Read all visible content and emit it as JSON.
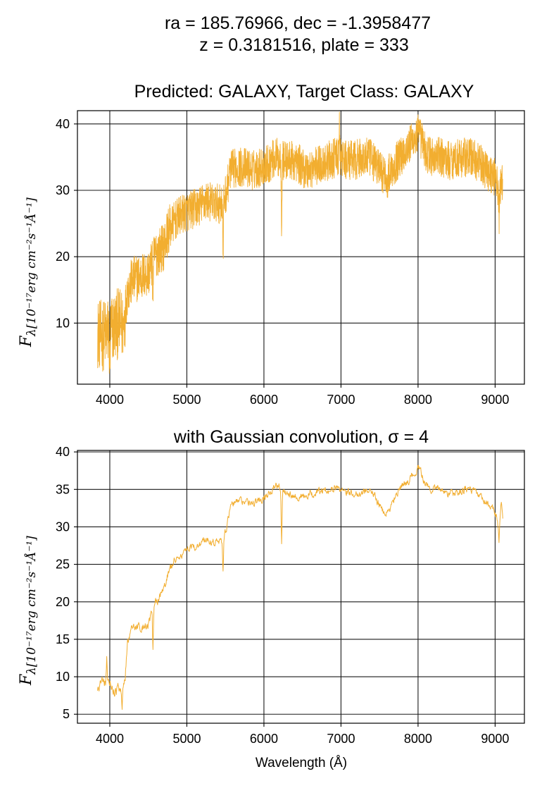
{
  "header": {
    "line1": "ra = 185.76966, dec = -1.3958477",
    "line2": "z = 0.3181516, plate = 333"
  },
  "colors": {
    "series": "#f2ae30",
    "grid": "#1a1a1a",
    "axes": "#000000"
  },
  "chart_data": [
    {
      "type": "line",
      "title": "Predicted: GALAXY, Target Class: GALAXY",
      "xlabel": "",
      "ylabel_main": "F",
      "ylabel_sub": "λ[10⁻¹⁷erg cm⁻²s⁻¹Å⁻¹]",
      "xlim": [
        3580,
        9380
      ],
      "ylim": [
        0.8,
        42
      ],
      "xticks": [
        4000,
        5000,
        6000,
        7000,
        8000,
        9000
      ],
      "yticks": [
        10,
        20,
        30,
        40
      ],
      "grid": true,
      "series_color": "#f2ae30",
      "anchors": [
        [
          3840,
          8.5
        ],
        [
          3900,
          8.0
        ],
        [
          3960,
          8.5
        ],
        [
          4000,
          8.8
        ],
        [
          4060,
          9.5
        ],
        [
          4120,
          10.0
        ],
        [
          4180,
          9.5
        ],
        [
          4200,
          12.0
        ],
        [
          4230,
          15.0
        ],
        [
          4300,
          16.5
        ],
        [
          4400,
          17.0
        ],
        [
          4500,
          17.5
        ],
        [
          4560,
          19.5
        ],
        [
          4600,
          20.5
        ],
        [
          4700,
          21.5
        ],
        [
          4760,
          24.0
        ],
        [
          4850,
          25.5
        ],
        [
          4950,
          26.5
        ],
        [
          5050,
          27.0
        ],
        [
          5150,
          27.5
        ],
        [
          5250,
          28.5
        ],
        [
          5350,
          28.0
        ],
        [
          5450,
          28.0
        ],
        [
          5520,
          30.0
        ],
        [
          5560,
          33.0
        ],
        [
          5650,
          33.5
        ],
        [
          5750,
          33.5
        ],
        [
          5850,
          33.0
        ],
        [
          5950,
          33.5
        ],
        [
          6050,
          34.0
        ],
        [
          6150,
          35.0
        ],
        [
          6250,
          34.5
        ],
        [
          6350,
          34.5
        ],
        [
          6450,
          34.0
        ],
        [
          6550,
          33.0
        ],
        [
          6650,
          33.5
        ],
        [
          6750,
          34.0
        ],
        [
          6850,
          34.5
        ],
        [
          6950,
          35.0
        ],
        [
          7050,
          34.5
        ],
        [
          7150,
          34.5
        ],
        [
          7250,
          34.8
        ],
        [
          7350,
          35.0
        ],
        [
          7450,
          34.0
        ],
        [
          7550,
          32.5
        ],
        [
          7620,
          32.5
        ],
        [
          7700,
          34.0
        ],
        [
          7800,
          35.5
        ],
        [
          7900,
          37.0
        ],
        [
          8000,
          38.5
        ],
        [
          8050,
          37.5
        ],
        [
          8100,
          35.5
        ],
        [
          8200,
          35.0
        ],
        [
          8300,
          35.0
        ],
        [
          8400,
          34.5
        ],
        [
          8500,
          34.8
        ],
        [
          8600,
          35.0
        ],
        [
          8700,
          35.0
        ],
        [
          8800,
          34.0
        ],
        [
          8900,
          33.0
        ],
        [
          9000,
          32.0
        ],
        [
          9050,
          30.0
        ],
        [
          9100,
          31.0
        ]
      ],
      "features": [
        [
          5470,
          -9.0
        ],
        [
          6230,
          -9.0
        ],
        [
          7600,
          -3.0
        ],
        [
          9050,
          -4.5
        ],
        [
          4560,
          -5.0
        ],
        [
          6980,
          4.5
        ],
        [
          4000,
          -6.0
        ]
      ],
      "noise_amplitude": 3.0
    },
    {
      "type": "line",
      "title": "with Gaussian convolution, σ = 4",
      "xlabel": "Wavelength (Å)",
      "ylabel_main": "F",
      "ylabel_sub": "λ[10⁻¹⁷erg cm⁻²s⁻¹Å⁻¹]",
      "xlim": [
        3580,
        9380
      ],
      "ylim": [
        3.8,
        40.2
      ],
      "xticks": [
        4000,
        5000,
        6000,
        7000,
        8000,
        9000
      ],
      "yticks": [
        5,
        10,
        15,
        20,
        25,
        30,
        35,
        40
      ],
      "grid": true,
      "series_color": "#f2ae30",
      "anchors": [
        [
          3840,
          8.0
        ],
        [
          3900,
          9.5
        ],
        [
          3960,
          9.0
        ],
        [
          4000,
          9.5
        ],
        [
          4060,
          8.0
        ],
        [
          4120,
          8.5
        ],
        [
          4160,
          8.0
        ],
        [
          4200,
          10.0
        ],
        [
          4230,
          15.0
        ],
        [
          4300,
          16.5
        ],
        [
          4400,
          16.8
        ],
        [
          4500,
          17.0
        ],
        [
          4560,
          19.0
        ],
        [
          4600,
          20.0
        ],
        [
          4700,
          21.5
        ],
        [
          4760,
          24.0
        ],
        [
          4850,
          25.5
        ],
        [
          4950,
          26.5
        ],
        [
          5050,
          27.0
        ],
        [
          5150,
          27.5
        ],
        [
          5250,
          28.5
        ],
        [
          5350,
          28.0
        ],
        [
          5450,
          28.0
        ],
        [
          5520,
          30.0
        ],
        [
          5560,
          32.5
        ],
        [
          5650,
          33.5
        ],
        [
          5750,
          33.5
        ],
        [
          5850,
          33.0
        ],
        [
          5950,
          33.5
        ],
        [
          6050,
          34.5
        ],
        [
          6150,
          35.5
        ],
        [
          6250,
          35.0
        ],
        [
          6350,
          34.5
        ],
        [
          6450,
          34.0
        ],
        [
          6550,
          34.0
        ],
        [
          6650,
          34.5
        ],
        [
          6750,
          34.8
        ],
        [
          6850,
          35.0
        ],
        [
          6950,
          35.2
        ],
        [
          7050,
          35.0
        ],
        [
          7150,
          34.5
        ],
        [
          7250,
          34.5
        ],
        [
          7350,
          35.0
        ],
        [
          7450,
          34.0
        ],
        [
          7550,
          31.8
        ],
        [
          7620,
          32.0
        ],
        [
          7700,
          34.0
        ],
        [
          7800,
          35.5
        ],
        [
          7900,
          36.5
        ],
        [
          8000,
          38.0
        ],
        [
          8050,
          37.0
        ],
        [
          8100,
          35.5
        ],
        [
          8200,
          35.0
        ],
        [
          8300,
          35.0
        ],
        [
          8400,
          34.5
        ],
        [
          8500,
          34.5
        ],
        [
          8600,
          35.0
        ],
        [
          8700,
          35.0
        ],
        [
          8800,
          34.0
        ],
        [
          8900,
          33.0
        ],
        [
          9000,
          32.0
        ],
        [
          9050,
          30.0
        ],
        [
          9080,
          33.0
        ],
        [
          9100,
          31.5
        ]
      ],
      "features": [
        [
          5470,
          -4.5
        ],
        [
          6230,
          -7.0
        ],
        [
          4560,
          -5.0
        ],
        [
          4160,
          -3.0
        ],
        [
          9050,
          -2.0
        ],
        [
          3960,
          3.5
        ]
      ],
      "noise_amplitude": 1.0
    }
  ]
}
